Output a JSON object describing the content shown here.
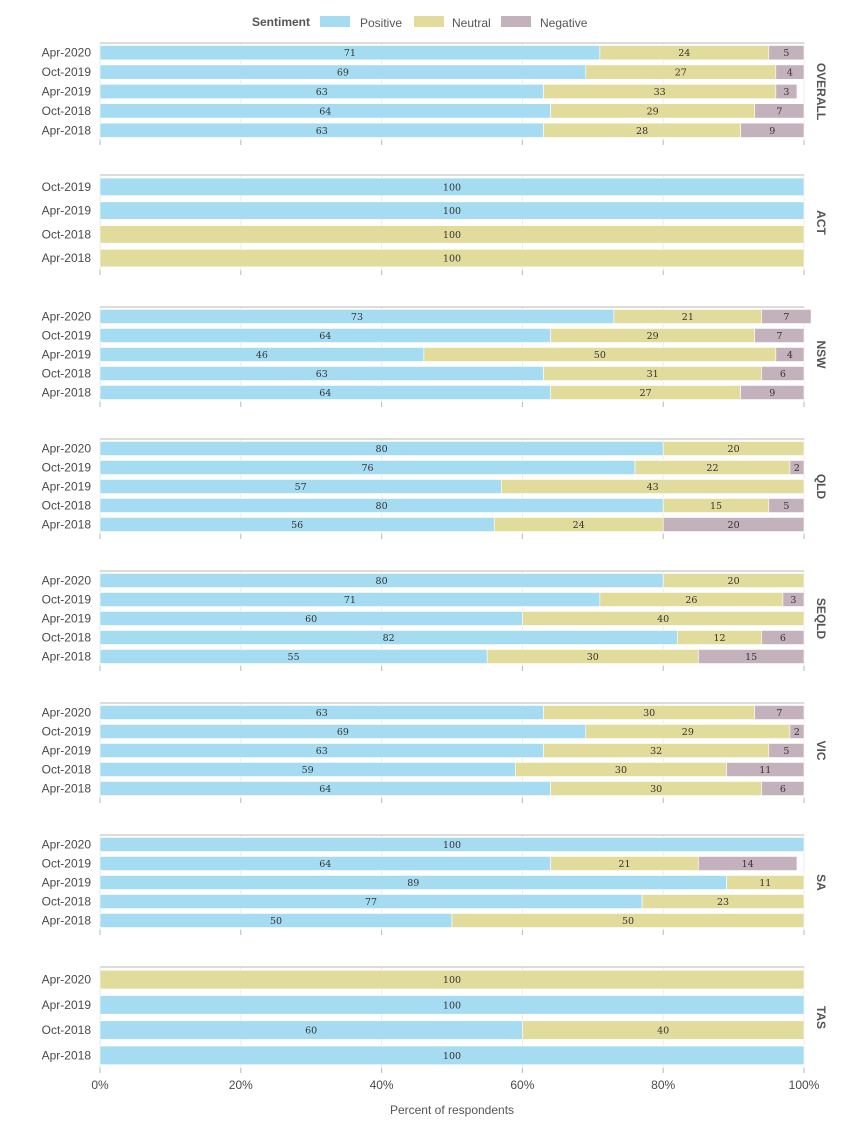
{
  "chart_data": {
    "type": "bar",
    "orientation": "horizontal",
    "stacked": true,
    "legend": {
      "title": "Sentiment",
      "position": "top",
      "entries": [
        "Positive",
        "Neutral",
        "Negative"
      ]
    },
    "xlabel": "Percent of respondents",
    "xlim": [
      0,
      100
    ],
    "xticks": [
      "0%",
      "20%",
      "40%",
      "60%",
      "80%",
      "100%"
    ],
    "grid": true,
    "colors": {
      "Positive": "#a6dcf2",
      "Neutral": "#e2dc9c",
      "Negative": "#c3b1bb"
    },
    "panels": [
      {
        "facet": "OVERALL",
        "categories": [
          "Apr-2020",
          "Oct-2019",
          "Apr-2019",
          "Oct-2018",
          "Apr-2018"
        ],
        "series": [
          {
            "name": "Positive",
            "values": [
              71,
              69,
              63,
              64,
              63
            ]
          },
          {
            "name": "Neutral",
            "values": [
              24,
              27,
              33,
              29,
              28
            ]
          },
          {
            "name": "Negative",
            "values": [
              5,
              4,
              3,
              7,
              9
            ]
          }
        ]
      },
      {
        "facet": "ACT",
        "categories": [
          "Oct-2019",
          "Apr-2019",
          "Oct-2018",
          "Apr-2018"
        ],
        "series": [
          {
            "name": "Positive",
            "values": [
              100,
              100,
              0,
              0
            ]
          },
          {
            "name": "Neutral",
            "values": [
              0,
              0,
              100,
              100
            ]
          },
          {
            "name": "Negative",
            "values": [
              0,
              0,
              0,
              0
            ]
          }
        ]
      },
      {
        "facet": "NSW",
        "categories": [
          "Apr-2020",
          "Oct-2019",
          "Apr-2019",
          "Oct-2018",
          "Apr-2018"
        ],
        "series": [
          {
            "name": "Positive",
            "values": [
              73,
              64,
              46,
              63,
              64
            ]
          },
          {
            "name": "Neutral",
            "values": [
              21,
              29,
              50,
              31,
              27
            ]
          },
          {
            "name": "Negative",
            "values": [
              7,
              7,
              4,
              6,
              9
            ]
          }
        ]
      },
      {
        "facet": "QLD",
        "categories": [
          "Apr-2020",
          "Oct-2019",
          "Apr-2019",
          "Oct-2018",
          "Apr-2018"
        ],
        "series": [
          {
            "name": "Positive",
            "values": [
              80,
              76,
              57,
              80,
              56
            ]
          },
          {
            "name": "Neutral",
            "values": [
              20,
              22,
              43,
              15,
              24
            ]
          },
          {
            "name": "Negative",
            "values": [
              0,
              2,
              0,
              5,
              20
            ]
          }
        ]
      },
      {
        "facet": "SEQLD",
        "categories": [
          "Apr-2020",
          "Oct-2019",
          "Apr-2019",
          "Oct-2018",
          "Apr-2018"
        ],
        "series": [
          {
            "name": "Positive",
            "values": [
              80,
              71,
              60,
              82,
              55
            ]
          },
          {
            "name": "Neutral",
            "values": [
              20,
              26,
              40,
              12,
              30
            ]
          },
          {
            "name": "Negative",
            "values": [
              0,
              3,
              0,
              6,
              15
            ]
          }
        ]
      },
      {
        "facet": "VIC",
        "categories": [
          "Apr-2020",
          "Oct-2019",
          "Apr-2019",
          "Oct-2018",
          "Apr-2018"
        ],
        "series": [
          {
            "name": "Positive",
            "values": [
              63,
              69,
              63,
              59,
              64
            ]
          },
          {
            "name": "Neutral",
            "values": [
              30,
              29,
              32,
              30,
              30
            ]
          },
          {
            "name": "Negative",
            "values": [
              7,
              2,
              5,
              11,
              6
            ]
          }
        ]
      },
      {
        "facet": "SA",
        "categories": [
          "Apr-2020",
          "Oct-2019",
          "Apr-2019",
          "Oct-2018",
          "Apr-2018"
        ],
        "series": [
          {
            "name": "Positive",
            "values": [
              100,
              64,
              89,
              77,
              50
            ]
          },
          {
            "name": "Neutral",
            "values": [
              0,
              21,
              11,
              23,
              50
            ]
          },
          {
            "name": "Negative",
            "values": [
              0,
              14,
              0,
              0,
              0
            ]
          }
        ]
      },
      {
        "facet": "TAS",
        "categories": [
          "Apr-2020",
          "Apr-2019",
          "Oct-2018",
          "Apr-2018"
        ],
        "series": [
          {
            "name": "Positive",
            "values": [
              0,
              100,
              60,
              100
            ]
          },
          {
            "name": "Neutral",
            "values": [
              100,
              0,
              40,
              0
            ]
          },
          {
            "name": "Negative",
            "values": [
              0,
              0,
              0,
              0
            ]
          }
        ]
      }
    ]
  }
}
